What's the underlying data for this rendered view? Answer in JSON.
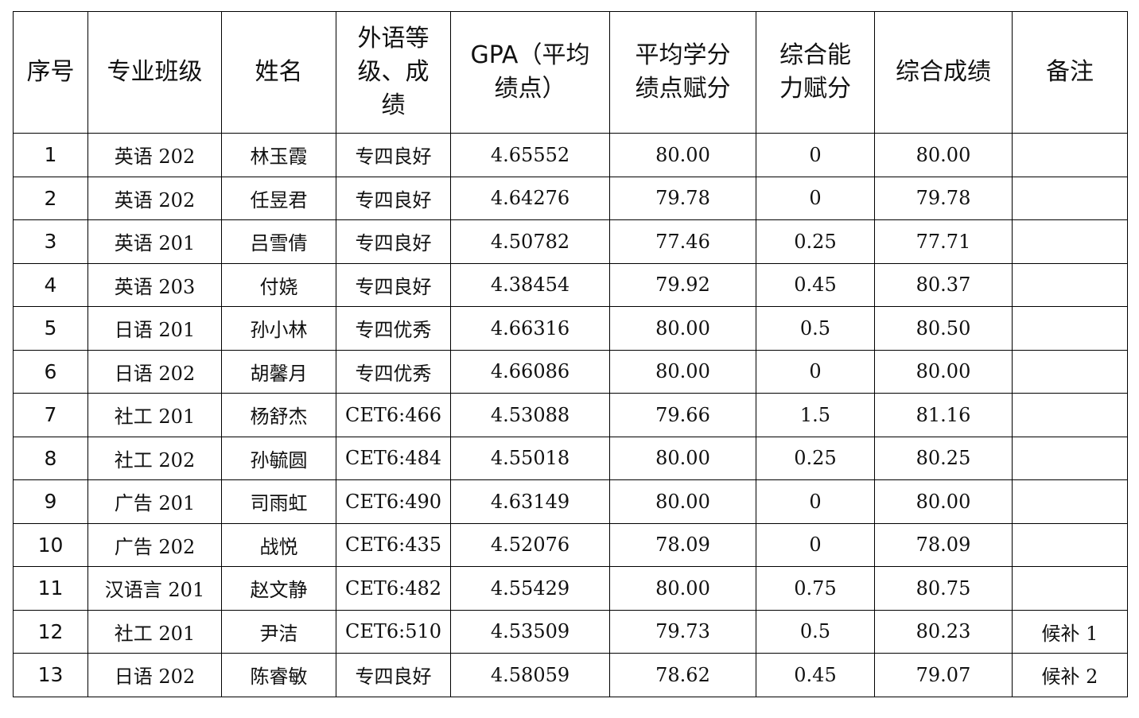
{
  "table": {
    "headers": [
      {
        "lines": [
          "序号"
        ]
      },
      {
        "lines": [
          "专业班级"
        ]
      },
      {
        "lines": [
          "姓名"
        ]
      },
      {
        "lines": [
          "外语等",
          "级、成",
          "绩"
        ]
      },
      {
        "lines": [
          "GPA（平均",
          "绩点）"
        ]
      },
      {
        "lines": [
          "平均学分",
          "绩点赋分"
        ]
      },
      {
        "lines": [
          "综合能",
          "力赋分"
        ]
      },
      {
        "lines": [
          "综合成绩"
        ]
      },
      {
        "lines": [
          "备注"
        ]
      }
    ],
    "rows": [
      {
        "no": "1",
        "class": "英语 202",
        "name": "林玉霞",
        "lang": "专四良好",
        "gpa": "4.65552",
        "gpa_score": "80.00",
        "ability": "0",
        "total": "80.00",
        "note": ""
      },
      {
        "no": "2",
        "class": "英语 202",
        "name": "任昱君",
        "lang": "专四良好",
        "gpa": "4.64276",
        "gpa_score": "79.78",
        "ability": "0",
        "total": "79.78",
        "note": ""
      },
      {
        "no": "3",
        "class": "英语 201",
        "name": "吕雪倩",
        "lang": "专四良好",
        "gpa": "4.50782",
        "gpa_score": "77.46",
        "ability": "0.25",
        "total": "77.71",
        "note": ""
      },
      {
        "no": "4",
        "class": "英语 203",
        "name": "付娆",
        "lang": "专四良好",
        "gpa": "4.38454",
        "gpa_score": "79.92",
        "ability": "0.45",
        "total": "80.37",
        "note": ""
      },
      {
        "no": "5",
        "class": "日语 201",
        "name": "孙小林",
        "lang": "专四优秀",
        "gpa": "4.66316",
        "gpa_score": "80.00",
        "ability": "0.5",
        "total": "80.50",
        "note": ""
      },
      {
        "no": "6",
        "class": "日语 202",
        "name": "胡馨月",
        "lang": "专四优秀",
        "gpa": "4.66086",
        "gpa_score": "80.00",
        "ability": "0",
        "total": "80.00",
        "note": ""
      },
      {
        "no": "7",
        "class": "社工 201",
        "name": "杨舒杰",
        "lang": "CET6:466",
        "gpa": "4.53088",
        "gpa_score": "79.66",
        "ability": "1.5",
        "total": "81.16",
        "note": ""
      },
      {
        "no": "8",
        "class": "社工 202",
        "name": "孙毓圆",
        "lang": "CET6:484",
        "gpa": "4.55018",
        "gpa_score": "80.00",
        "ability": "0.25",
        "total": "80.25",
        "note": ""
      },
      {
        "no": "9",
        "class": "广告 201",
        "name": "司雨虹",
        "lang": "CET6:490",
        "gpa": "4.63149",
        "gpa_score": "80.00",
        "ability": "0",
        "total": "80.00",
        "note": ""
      },
      {
        "no": "10",
        "class": "广告 202",
        "name": "战悦",
        "lang": "CET6:435",
        "gpa": "4.52076",
        "gpa_score": "78.09",
        "ability": "0",
        "total": "78.09",
        "note": ""
      },
      {
        "no": "11",
        "class": "汉语言 201",
        "name": "赵文静",
        "lang": "CET6:482",
        "gpa": "4.55429",
        "gpa_score": "80.00",
        "ability": "0.75",
        "total": "80.75",
        "note": ""
      },
      {
        "no": "12",
        "class": "社工 201",
        "name": "尹洁",
        "lang": "CET6:510",
        "gpa": "4.53509",
        "gpa_score": "79.73",
        "ability": "0.5",
        "total": "80.23",
        "note": "候补 1"
      },
      {
        "no": "13",
        "class": "日语 202",
        "name": "陈睿敏",
        "lang": "专四良好",
        "gpa": "4.58059",
        "gpa_score": "78.62",
        "ability": "0.45",
        "total": "79.07",
        "note": "候补 2"
      }
    ]
  }
}
